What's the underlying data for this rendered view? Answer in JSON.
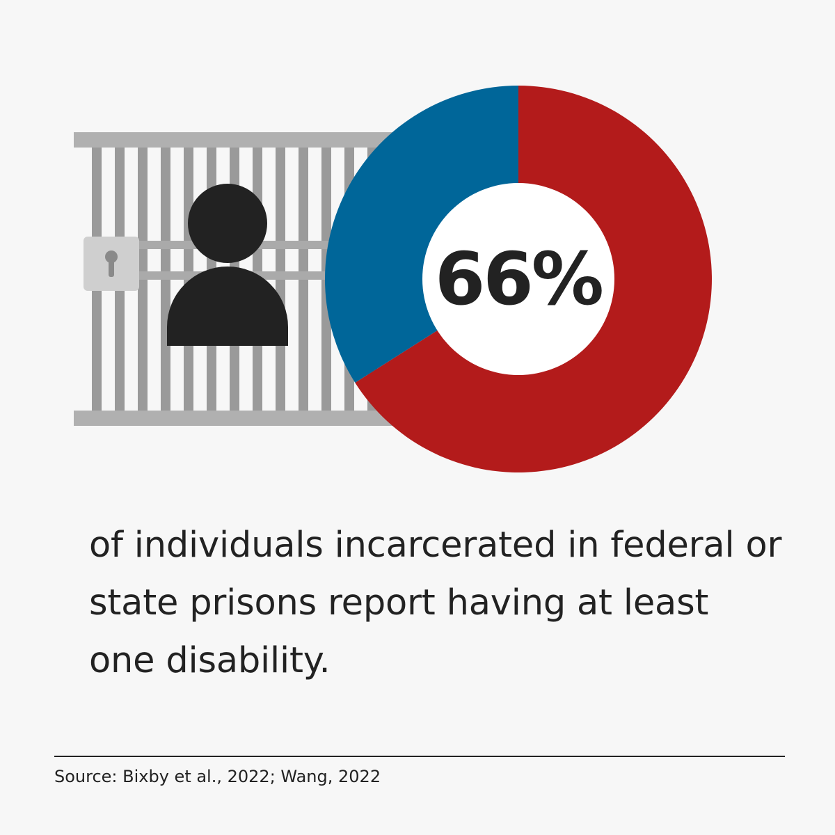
{
  "chart_data": {
    "type": "pie",
    "style": "donut",
    "slices": [
      {
        "value": 66,
        "color": "#b31b1b"
      },
      {
        "value": 34,
        "color": "#006699"
      }
    ],
    "center_label": "66%"
  },
  "caption": "of individuals incarcerated in federal or state prisons report having at least one disability.",
  "source": "Source: Bixby et al., 2022; Wang, 2022",
  "illustration": {
    "icons": [
      "jail-bars-icon",
      "padlock-icon",
      "person-icon"
    ],
    "bar_color": "#9a9a9a",
    "person_color": "#222222"
  }
}
